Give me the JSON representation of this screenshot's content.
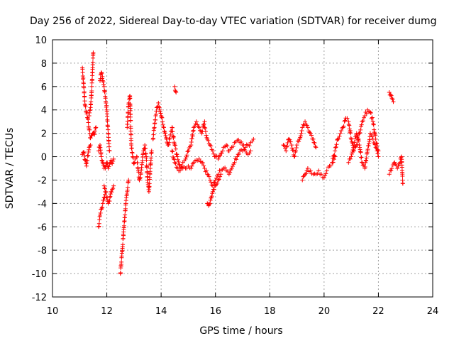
{
  "chart_data": {
    "type": "scatter",
    "title": "Day 256 of 2022, Sidereal Day-to-day VTEC variation (SDTVAR) for receiver dumg",
    "xlabel": "GPS time / hours",
    "ylabel": "SDTVAR / TECUs",
    "xlim": [
      10,
      24
    ],
    "ylim": [
      -12,
      10
    ],
    "xticks": [
      10,
      12,
      14,
      16,
      18,
      20,
      22,
      24
    ],
    "yticks": [
      -12,
      -10,
      -8,
      -6,
      -4,
      -2,
      0,
      2,
      4,
      6,
      8,
      10
    ],
    "grid": true,
    "marker": "+",
    "colors": {
      "series": "#ff0000",
      "grid": "#a0a0a0",
      "axis": "#000000"
    },
    "series": [
      {
        "name": "SDTVAR",
        "segments": [
          {
            "x": [
              11.1,
              11.15,
              11.2,
              11.25,
              11.3,
              11.35,
              11.4,
              11.45,
              11.5,
              11.55,
              11.6
            ],
            "y": [
              7.6,
              6.0,
              4.4,
              3.8,
              3.3,
              2.3,
              1.6,
              1.8,
              2.0,
              1.9,
              2.5
            ]
          },
          {
            "x": [
              11.1,
              11.15,
              11.2,
              11.25,
              11.3,
              11.35,
              11.4
            ],
            "y": [
              0.2,
              0.4,
              -0.3,
              -0.8,
              0.1,
              0.8,
              1.0
            ]
          },
          {
            "x": [
              11.35,
              11.4,
              11.45,
              11.5
            ],
            "y": [
              3.5,
              4.2,
              6.0,
              8.9
            ]
          },
          {
            "x": [
              11.75,
              11.8,
              11.85,
              11.9,
              11.95,
              12.0,
              12.05,
              12.1
            ],
            "y": [
              6.5,
              7.2,
              6.5,
              6.0,
              5.0,
              4.0,
              2.0,
              0.5
            ]
          },
          {
            "x": [
              11.7,
              11.75,
              11.8,
              11.85,
              11.9,
              11.95,
              12.0,
              12.05,
              12.1,
              12.15,
              12.2,
              12.25
            ],
            "y": [
              0.5,
              1.0,
              0.0,
              -0.5,
              -1.0,
              -1.0,
              -0.5,
              -1.0,
              -0.6,
              -0.3,
              -0.6,
              -0.2
            ]
          },
          {
            "x": [
              11.7,
              11.75,
              11.8,
              11.85,
              11.9,
              11.95
            ],
            "y": [
              -6.0,
              -5.0,
              -4.5,
              -4.0,
              -3.5,
              -3.0
            ]
          },
          {
            "x": [
              11.9,
              11.95,
              12.0,
              12.05,
              12.1,
              12.15,
              12.2,
              12.25
            ],
            "y": [
              -2.5,
              -3.0,
              -3.5,
              -4.0,
              -3.8,
              -3.0,
              -2.8,
              -2.5
            ]
          },
          {
            "x": [
              12.5,
              12.55,
              12.6,
              12.65,
              12.7,
              12.75,
              12.8
            ],
            "y": [
              -10.0,
              -8.5,
              -7.0,
              -5.5,
              -4.0,
              -3.0,
              -2.0
            ]
          },
          {
            "x": [
              12.75,
              12.8,
              12.85,
              12.9,
              12.95,
              13.0,
              13.05
            ],
            "y": [
              2.5,
              4.5,
              5.2,
              1.0,
              0.0,
              -0.6,
              -0.2
            ]
          },
          {
            "x": [
              13.1,
              13.15,
              13.2,
              13.25,
              13.3,
              13.35,
              13.4,
              13.45,
              13.5,
              13.55,
              13.6,
              13.65
            ],
            "y": [
              0.0,
              -1.0,
              -2.0,
              -1.5,
              -0.5,
              0.5,
              1.0,
              0.0,
              -2.0,
              -3.0,
              -1.0,
              0.5
            ]
          },
          {
            "x": [
              13.7,
              13.75,
              13.8,
              13.85,
              13.9,
              13.95,
              14.0,
              14.05,
              14.1,
              14.15,
              14.2,
              14.25,
              14.3
            ],
            "y": [
              1.5,
              2.5,
              3.5,
              4.2,
              4.6,
              4.0,
              3.5,
              3.0,
              2.5,
              2.0,
              1.5,
              1.0,
              1.2
            ]
          },
          {
            "x": [
              14.3,
              14.4,
              14.5,
              14.6,
              14.7,
              14.8,
              14.9,
              15.0,
              15.1,
              15.2,
              15.3,
              15.4,
              15.5,
              15.6
            ],
            "y": [
              1.5,
              2.5,
              1.0,
              0.0,
              -1.0,
              -0.5,
              -0.2,
              0.5,
              1.0,
              2.5,
              3.0,
              2.5,
              2.0,
              3.0
            ]
          },
          {
            "x": [
              14.4,
              14.5,
              14.6,
              14.7,
              14.8,
              14.9,
              15.0,
              15.1,
              15.2,
              15.3,
              15.4,
              15.5,
              15.6,
              15.7,
              15.8,
              15.9,
              16.0,
              16.1,
              16.2,
              16.3,
              16.4,
              16.5,
              16.6,
              16.7,
              16.8,
              16.9,
              17.0,
              17.1,
              17.2,
              17.3,
              17.4
            ],
            "y": [
              0.5,
              -0.5,
              -1.0,
              -1.2,
              -1.0,
              -1.0,
              -0.8,
              -1.0,
              -0.5,
              -0.3,
              -0.2,
              -0.5,
              -1.0,
              -1.5,
              -2.0,
              -2.5,
              -2.0,
              -1.5,
              -1.2,
              -1.0,
              -1.2,
              -1.5,
              -1.0,
              -0.5,
              0.0,
              0.5,
              0.5,
              0.8,
              1.0,
              1.2,
              1.5
            ]
          },
          {
            "x": [
              15.6,
              15.7,
              15.8,
              15.9,
              16.0,
              16.1,
              16.2,
              16.3,
              16.4,
              16.5,
              16.6,
              16.7,
              16.8,
              16.9,
              17.0,
              17.1,
              17.2,
              17.3
            ],
            "y": [
              2.5,
              1.5,
              1.0,
              0.5,
              0.0,
              -0.2,
              0.3,
              0.8,
              1.0,
              0.5,
              0.8,
              1.2,
              1.4,
              1.2,
              1.0,
              0.5,
              0.2,
              0.5
            ]
          },
          {
            "x": [
              15.7,
              15.75,
              15.8,
              15.85,
              15.9,
              15.95,
              16.0,
              16.1,
              16.2
            ],
            "y": [
              -4.0,
              -4.2,
              -4.0,
              -3.5,
              -3.0,
              -2.8,
              -2.5,
              -2.0,
              -1.5
            ]
          },
          {
            "x": [
              14.5,
              14.55
            ],
            "y": [
              6.0,
              5.5
            ]
          },
          {
            "x": [
              18.5,
              18.6,
              18.7,
              18.8,
              18.9,
              19.0,
              19.1,
              19.2,
              19.3,
              19.4,
              19.5,
              19.6,
              19.7
            ],
            "y": [
              1.0,
              0.5,
              1.5,
              1.0,
              0.0,
              1.0,
              1.5,
              2.5,
              3.0,
              2.5,
              2.0,
              1.5,
              0.8
            ]
          },
          {
            "x": [
              19.2,
              19.3,
              19.4,
              19.5,
              19.6,
              19.7,
              19.8,
              19.9,
              20.0,
              20.1,
              20.2,
              20.3,
              20.4
            ],
            "y": [
              -2.0,
              -1.5,
              -1.0,
              -1.2,
              -1.5,
              -1.5,
              -1.2,
              -1.5,
              -1.8,
              -1.2,
              -0.8,
              -0.5,
              0.0
            ]
          },
          {
            "x": [
              20.3,
              20.4,
              20.5,
              20.6,
              20.7,
              20.8,
              20.9,
              21.0,
              21.1,
              21.2,
              21.3,
              21.4,
              21.5,
              21.6,
              21.7,
              21.8,
              21.9,
              22.0
            ],
            "y": [
              -0.5,
              0.5,
              1.5,
              2.0,
              2.5,
              3.3,
              3.0,
              1.5,
              0.5,
              1.0,
              2.0,
              3.0,
              3.5,
              4.0,
              3.8,
              3.0,
              1.5,
              0.5
            ]
          },
          {
            "x": [
              20.9,
              21.0,
              21.1,
              21.2,
              21.3,
              21.4,
              21.5,
              21.6,
              21.7,
              21.8,
              21.9,
              22.0
            ],
            "y": [
              -0.5,
              0.0,
              1.0,
              2.0,
              1.0,
              -0.5,
              -1.0,
              0.5,
              2.0,
              1.5,
              0.8,
              0.0
            ]
          },
          {
            "x": [
              22.4,
              22.45,
              22.5,
              22.55
            ],
            "y": [
              5.5,
              5.3,
              5.0,
              4.7
            ]
          },
          {
            "x": [
              22.4,
              22.5,
              22.6,
              22.7,
              22.8,
              22.85,
              22.9
            ],
            "y": [
              -1.5,
              -1.0,
              -0.5,
              -1.0,
              -0.5,
              0.0,
              -2.3
            ]
          }
        ]
      }
    ]
  }
}
